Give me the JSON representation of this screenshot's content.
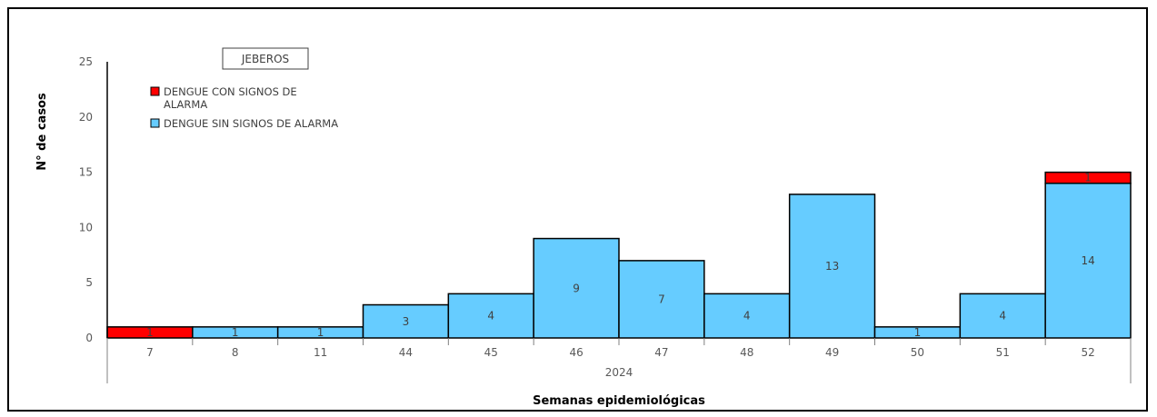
{
  "chart_data": {
    "type": "bar",
    "stacked": true,
    "title": "JEBEROS",
    "xlabel": "Semanas epidemiológicas",
    "ylabel": "N° de casos",
    "group_label": "2024",
    "categories": [
      "7",
      "8",
      "11",
      "44",
      "45",
      "46",
      "47",
      "48",
      "49",
      "50",
      "51",
      "52"
    ],
    "ylim": [
      0,
      25
    ],
    "yticks": [
      0,
      5,
      10,
      15,
      20,
      25
    ],
    "grid": false,
    "legend_position": "top-left",
    "series": [
      {
        "name": "DENGUE SIN SIGNOS DE ALARMA",
        "color": "#66CCFF",
        "values": [
          0,
          1,
          1,
          3,
          4,
          9,
          7,
          4,
          13,
          1,
          4,
          14
        ],
        "labels": [
          "",
          "1",
          "1",
          "3",
          "4",
          "9",
          "7",
          "4",
          "13",
          "1",
          "4",
          "14"
        ]
      },
      {
        "name": "DENGUE CON SIGNOS DE ALARMA",
        "color": "#FF0000",
        "values": [
          1,
          0,
          0,
          0,
          0,
          0,
          0,
          0,
          0,
          0,
          0,
          1
        ],
        "labels": [
          "1",
          "",
          "",
          "",
          "",
          "",
          "",
          "",
          "",
          "",
          "",
          "1"
        ]
      }
    ],
    "legend": [
      {
        "text": "DENGUE CON SIGNOS DE",
        "text2": "ALARMA",
        "color": "#FF0000"
      },
      {
        "text": "DENGUE SIN SIGNOS DE ALARMA",
        "text2": "",
        "color": "#66CCFF"
      }
    ]
  }
}
